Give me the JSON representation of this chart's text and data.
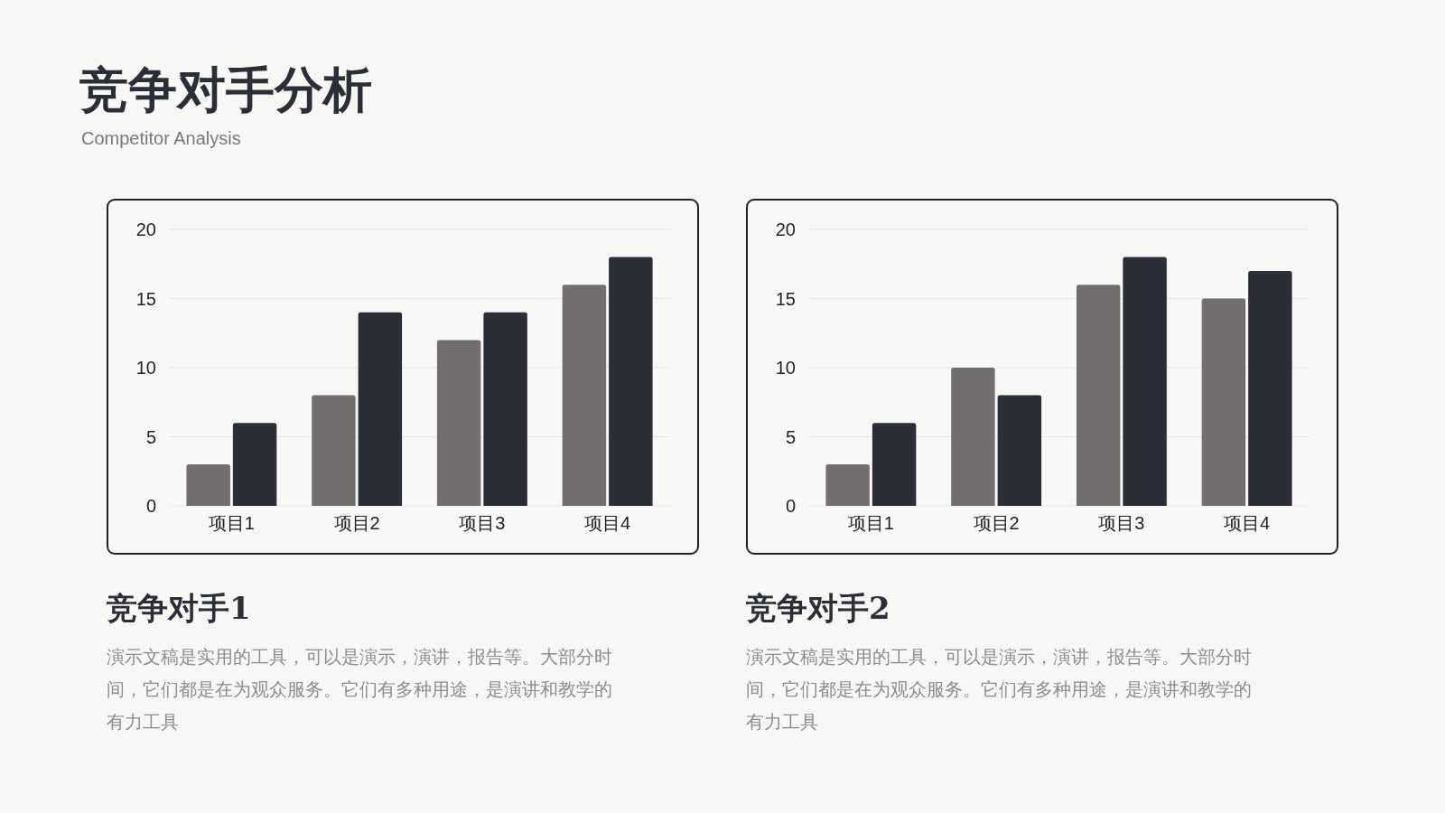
{
  "chart_data": [
    {
      "type": "other",
      "title": "竞争对手分析",
      "subtitle": "Competitor Analysis"
    },
    {
      "type": "bar",
      "title": "竞争对手1",
      "categories": [
        "项目1",
        "项目2",
        "项目3",
        "项目4"
      ],
      "series": [
        {
          "color": "#736f6e",
          "values": [
            3,
            8,
            12,
            16
          ]
        },
        {
          "color": "#2b2e37",
          "values": [
            6,
            14,
            14,
            18
          ]
        }
      ],
      "ylim": [
        0,
        20
      ],
      "yticks": [
        0,
        5,
        10,
        15,
        20
      ],
      "grid": "y",
      "annotations": [
        "演示文稿是实用的工具，可以是演示，演讲，报告等。大部分时间，它们都是在为观众服务。它们有多种用途，是演讲和教学的有力工具"
      ]
    },
    {
      "type": "bar",
      "title": "竞争对手2",
      "categories": [
        "项目1",
        "项目2",
        "项目3",
        "项目4"
      ],
      "series": [
        {
          "color": "#736f6e",
          "values": [
            3,
            10,
            16,
            15
          ]
        },
        {
          "color": "#2b2e37",
          "values": [
            6,
            8,
            18,
            17
          ]
        }
      ],
      "ylim": [
        0,
        20
      ],
      "yticks": [
        0,
        5,
        10,
        15,
        20
      ],
      "grid": "y",
      "annotations": [
        "演示文稿是实用的工具，可以是演示，演讲，报告等。大部分时间，它们都是在为观众服务。它们有多种用途，是演讲和教学的有力工具"
      ]
    }
  ]
}
